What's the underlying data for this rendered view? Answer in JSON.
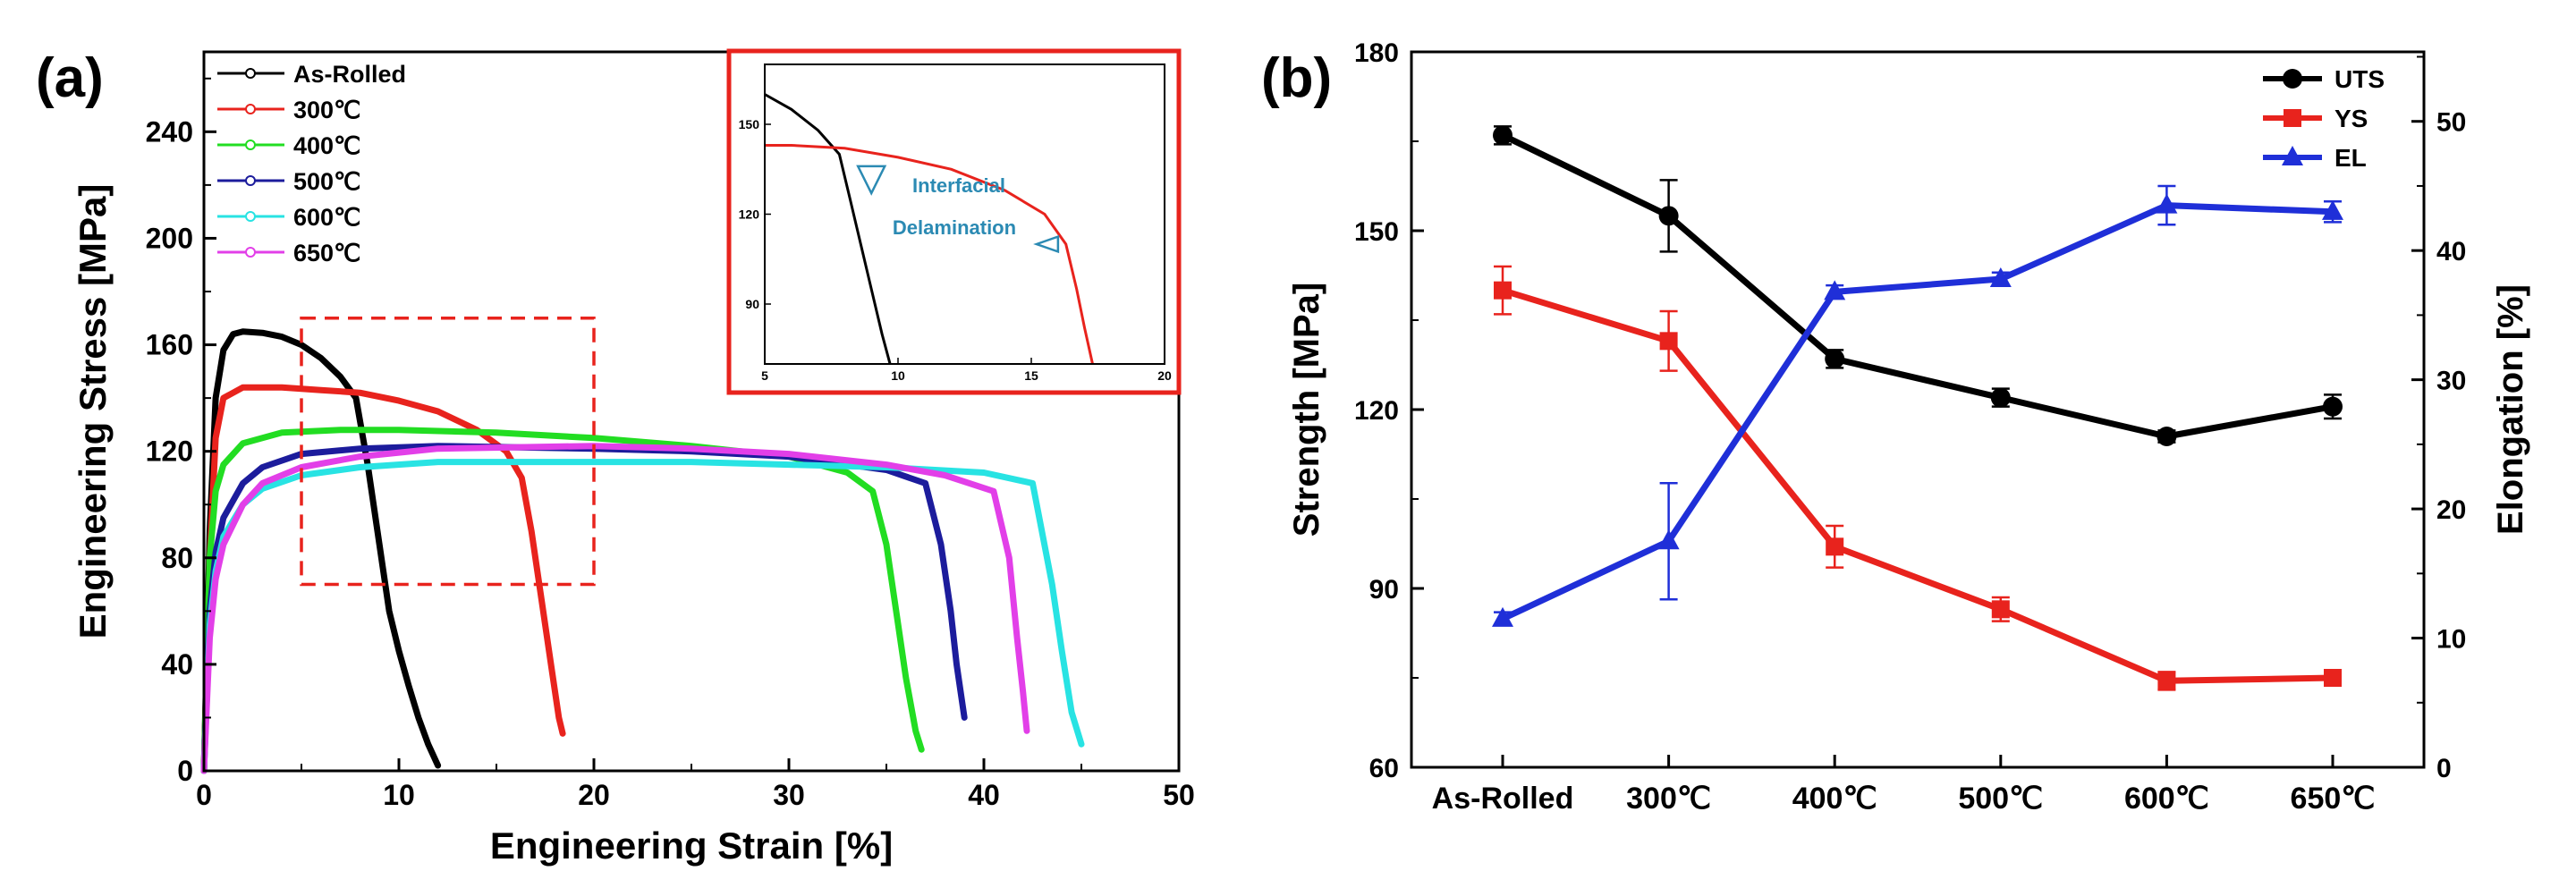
{
  "panel_a": {
    "letter": "(a)"
  },
  "panel_b": {
    "letter": "(b)"
  },
  "chart_data": [
    {
      "type": "line",
      "xlabel": "Engineering Strain [%]",
      "ylabel": "Engineering Stress [MPa]",
      "xlim": [
        0,
        50
      ],
      "ylim": [
        0,
        270
      ],
      "x_ticks": [
        0,
        10,
        20,
        30,
        40,
        50
      ],
      "y_ticks": [
        0,
        40,
        80,
        120,
        160,
        200,
        240
      ],
      "legend_position": "top-left",
      "series": [
        {
          "name": "As-Rolled",
          "color": "#000000",
          "x": [
            0,
            0.3,
            0.6,
            1.0,
            1.5,
            2.0,
            3.0,
            4.0,
            5.0,
            6.0,
            7.0,
            7.8,
            8.4,
            9.0,
            9.5,
            10.0,
            10.5,
            11.0,
            11.5,
            12.0
          ],
          "y": [
            0,
            90,
            140,
            158,
            164,
            165,
            164.5,
            163,
            160,
            155,
            148,
            140,
            115,
            85,
            60,
            45,
            32,
            20,
            10,
            2
          ]
        },
        {
          "name": "300℃",
          "color": "#e8231d",
          "x": [
            0,
            0.3,
            0.6,
            1.0,
            2.0,
            4.0,
            6.0,
            8.0,
            10.0,
            12.0,
            14.0,
            15.5,
            16.3,
            16.8,
            17.3,
            17.8,
            18.2,
            18.4
          ],
          "y": [
            0,
            80,
            125,
            140,
            144,
            144,
            143,
            142,
            139,
            135,
            128,
            120,
            110,
            90,
            65,
            40,
            20,
            14
          ]
        },
        {
          "name": "400℃",
          "color": "#22dd22",
          "x": [
            0,
            0.3,
            0.6,
            1.0,
            2.0,
            4.0,
            7.0,
            10.0,
            15.0,
            20.0,
            25.0,
            30.0,
            33.0,
            34.3,
            35.0,
            35.5,
            36.0,
            36.5,
            36.8
          ],
          "y": [
            0,
            80,
            105,
            115,
            123,
            127,
            128,
            128,
            127,
            125,
            122,
            118,
            112,
            105,
            85,
            60,
            35,
            15,
            8
          ]
        },
        {
          "name": "500℃",
          "color": "#1c1c9c",
          "x": [
            0,
            0.3,
            0.6,
            1.0,
            2.0,
            3.0,
            5.0,
            8.0,
            12.0,
            20.0,
            25.0,
            30.0,
            35.0,
            37.0,
            37.8,
            38.3,
            38.6,
            39.0
          ],
          "y": [
            0,
            60,
            82,
            95,
            108,
            114,
            119,
            121,
            122,
            121,
            120,
            118,
            113,
            108,
            85,
            60,
            40,
            20
          ]
        },
        {
          "name": "600℃",
          "color": "#28e3e3",
          "x": [
            0,
            0.3,
            0.6,
            1.0,
            2.0,
            3.0,
            5.0,
            8.0,
            12.0,
            20.0,
            25.0,
            30.0,
            35.0,
            40.0,
            42.5,
            43.5,
            44.0,
            44.5,
            45.0
          ],
          "y": [
            0,
            55,
            75,
            88,
            100,
            106,
            111,
            114,
            116,
            116,
            116,
            115,
            114,
            112,
            108,
            70,
            45,
            22,
            10
          ]
        },
        {
          "name": "650℃",
          "color": "#e23fe8",
          "x": [
            0,
            0.3,
            0.6,
            1.0,
            2.0,
            3.0,
            5.0,
            8.0,
            12.0,
            20.0,
            25.0,
            30.0,
            35.0,
            38.0,
            40.5,
            41.3,
            41.7,
            42.0,
            42.2
          ],
          "y": [
            0,
            50,
            72,
            85,
            100,
            108,
            114,
            118,
            121,
            122,
            121,
            119,
            115,
            111,
            105,
            80,
            50,
            30,
            15
          ]
        }
      ],
      "dashed_box": {
        "x": [
          5,
          20
        ],
        "y": [
          70,
          170
        ],
        "color": "#e8231d"
      },
      "inset": {
        "xlim": [
          5,
          20
        ],
        "ylim": [
          70,
          170
        ],
        "x_ticks": [
          5,
          10,
          15,
          20
        ],
        "y_ticks": [
          90,
          120,
          150
        ],
        "annotation": [
          "Interfacial",
          "Delamination"
        ],
        "series": [
          {
            "color": "#000000",
            "x": [
              5.0,
              6.0,
              7.0,
              7.8,
              8.2,
              8.6,
              9.0,
              9.4,
              9.7
            ],
            "y": [
              160,
              155,
              148,
              140,
              125,
              110,
              95,
              80,
              70
            ]
          },
          {
            "color": "#e8231d",
            "x": [
              5.0,
              6.0,
              8.0,
              10.0,
              12.0,
              14.0,
              15.5,
              16.3,
              16.7,
              17.0,
              17.3
            ],
            "y": [
              143,
              143,
              142,
              139,
              135,
              128,
              120,
              110,
              95,
              82,
              70
            ]
          }
        ]
      }
    },
    {
      "type": "line",
      "categories": [
        "As-Rolled",
        "300℃",
        "400℃",
        "500℃",
        "600℃",
        "650℃"
      ],
      "ylabel": "Strength [MPa]",
      "y2label": "Elongation [%]",
      "ylim": [
        60,
        180
      ],
      "y2lim": [
        0,
        55.38
      ],
      "y_ticks": [
        60,
        90,
        120,
        150,
        180
      ],
      "y2_ticks": [
        0,
        10,
        20,
        30,
        40,
        50
      ],
      "legend_position": "top-right",
      "series": [
        {
          "name": "UTS",
          "axis": "left",
          "color": "#000000",
          "marker": "circle",
          "values": [
            166,
            152.5,
            128.5,
            122,
            115.5,
            120.5
          ],
          "errors": [
            1.5,
            6,
            1.5,
            1.5,
            1,
            2
          ]
        },
        {
          "name": "YS",
          "axis": "left",
          "color": "#e8231d",
          "marker": "square",
          "values": [
            140,
            131.5,
            97,
            86.5,
            74.5,
            75
          ],
          "errors": [
            4,
            5,
            3.5,
            2,
            1.5,
            0.5
          ]
        },
        {
          "name": "EL",
          "axis": "right",
          "color": "#1f2fd8",
          "marker": "triangle",
          "values": [
            11.5,
            17.5,
            36.8,
            37.8,
            43.5,
            43
          ],
          "errors": [
            0.5,
            4.5,
            0.5,
            0.5,
            1.5,
            0.8
          ]
        }
      ]
    }
  ]
}
